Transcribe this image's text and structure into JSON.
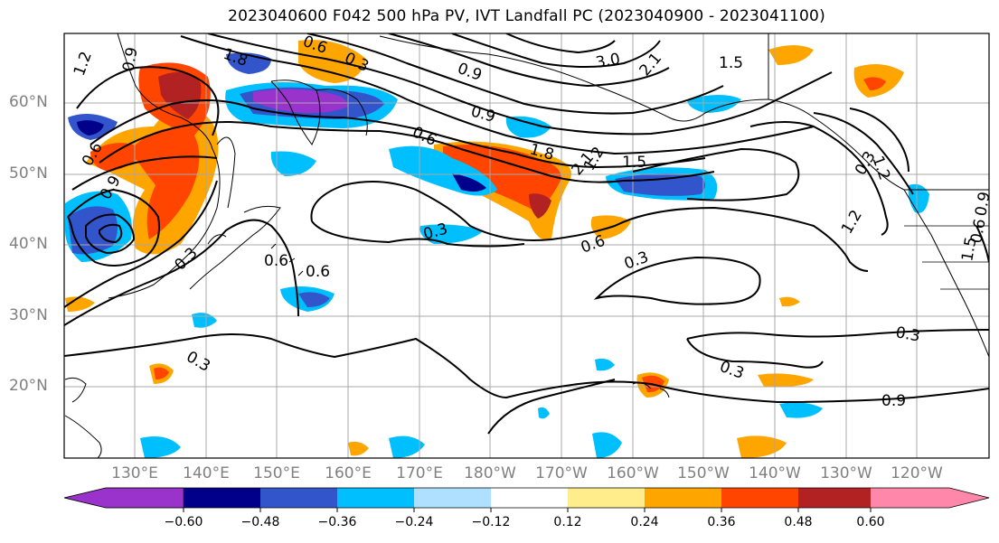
{
  "title": "2023040600 F042 500 hPa PV, IVT Landfall PC (2023040900 - 2023041100)",
  "lat_labels": [
    "60°N",
    "50°N",
    "40°N",
    "30°N",
    "20°N"
  ],
  "lon_labels": [
    "130°E",
    "140°E",
    "150°E",
    "160°E",
    "170°E",
    "180°W",
    "170°W",
    "160°W",
    "150°W",
    "140°W",
    "130°W",
    "120°W"
  ],
  "contour_labels": [
    "1.2",
    "0.9",
    "1.8",
    "0.6",
    "0.3",
    "0.9",
    "3.0",
    "2.1",
    "1.5",
    "0.9",
    "0.6",
    "1.8",
    "1.5",
    "2.1",
    "1.2",
    "0.9",
    "0.6",
    "0.3",
    "0.6",
    "0.6",
    "0.3",
    "0.6",
    "0.3",
    "0.3",
    "0.3",
    "0.3",
    "0.9",
    "1.2",
    "0.3",
    "1.2",
    "1.5",
    "0.6",
    "0.9"
  ],
  "colorbar": {
    "ticks": [
      "−0.60",
      "−0.48",
      "−0.36",
      "−0.24",
      "−0.12",
      "0.12",
      "0.24",
      "0.36",
      "0.48",
      "0.60"
    ],
    "colors": [
      "#9933cc",
      "#00008b",
      "#3355cc",
      "#00bfff",
      "#b0e0ff",
      "#ffffff",
      "#ffec8b",
      "#ffa500",
      "#ff4500",
      "#b22222",
      "#ff88aa"
    ]
  },
  "fill_colors": {
    "darkred": "#b22222",
    "red": "#ff4500",
    "orange": "#ffa500",
    "yellow": "#ffec8b",
    "purple": "#9933cc",
    "navy": "#00008b",
    "blue": "#3355cc",
    "cyan": "#00bfff",
    "lightblue": "#b0e0ff"
  }
}
